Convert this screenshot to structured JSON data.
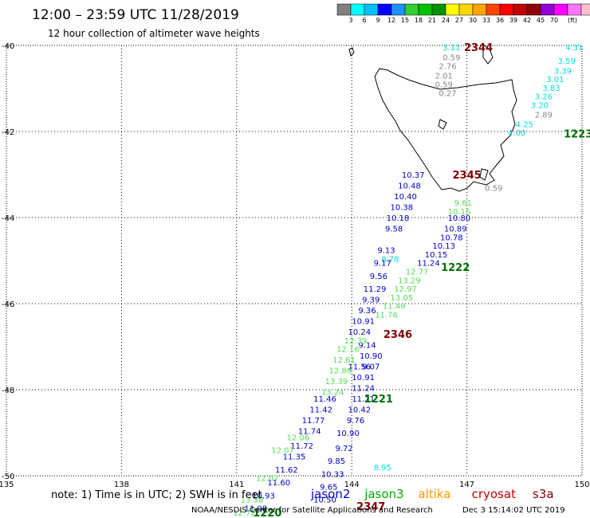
{
  "title": "12:00 – 23:59 UTC 11/28/2019",
  "subtitle": "12 hour collection of altimeter wave heights",
  "legend": {
    "colors": [
      "#808080",
      "#00ffff",
      "#00bfff",
      "#0000ff",
      "#1e90ff",
      "#32cd32",
      "#00c000",
      "#009000",
      "#ffff00",
      "#ffd700",
      "#ffa500",
      "#ff4500",
      "#ff0000",
      "#c00000",
      "#900000",
      "#9400d3",
      "#ff00ff",
      "#ff77ff",
      "#ffc0cb",
      "#000000"
    ],
    "labels": [
      "3",
      "6",
      "9",
      "12",
      "15",
      "18",
      "21",
      "24",
      "27",
      "30",
      "33",
      "36",
      "39",
      "42",
      "45",
      "70",
      "(ft)"
    ]
  },
  "chart_data": {
    "type": "map",
    "x_ticks": [
      "135",
      "138",
      "141",
      "144",
      "147",
      "150"
    ],
    "y_ticks": [
      "-40",
      "-42",
      "-44",
      "-46",
      "-48",
      "-50"
    ],
    "xlim": [
      135,
      150
    ],
    "ylim": [
      -50,
      -40
    ],
    "grid": true,
    "tracks": [
      {
        "color": "#00dddd",
        "labels": [
          {
            "lon": 146.6,
            "lat": -40.04,
            "t": "3.11"
          },
          {
            "lon": 149.8,
            "lat": -40.04,
            "t": "4.31"
          },
          {
            "lon": 149.6,
            "lat": -40.35,
            "t": "3.59"
          },
          {
            "lon": 149.5,
            "lat": -40.58,
            "t": "3.39"
          },
          {
            "lon": 149.3,
            "lat": -40.78,
            "t": "3.01"
          },
          {
            "lon": 149.2,
            "lat": -40.98,
            "t": "3.83"
          },
          {
            "lon": 149.0,
            "lat": -41.18,
            "t": "3.26"
          },
          {
            "lon": 148.9,
            "lat": -41.38,
            "t": "3.20"
          },
          {
            "lon": 148.5,
            "lat": -41.82,
            "t": "4.25"
          },
          {
            "lon": 148.3,
            "lat": -42.02,
            "t": "4.00"
          },
          {
            "lon": 144.8,
            "lat": -49.8,
            "t": "8.95"
          },
          {
            "lon": 145.0,
            "lat": -44.95,
            "t": "8.78"
          }
        ]
      },
      {
        "color": "#888888",
        "labels": [
          {
            "lon": 146.6,
            "lat": -40.27,
            "t": "0.59"
          },
          {
            "lon": 146.5,
            "lat": -40.47,
            "t": "2.76"
          },
          {
            "lon": 146.4,
            "lat": -40.69,
            "t": "2.01"
          },
          {
            "lon": 146.4,
            "lat": -40.9,
            "t": "0.59"
          },
          {
            "lon": 146.5,
            "lat": -41.1,
            "t": "0.27"
          },
          {
            "lon": 149.0,
            "lat": -41.6,
            "t": "2.89"
          },
          {
            "lon": 147.7,
            "lat": -43.31,
            "t": "0.59"
          }
        ]
      },
      {
        "color": "#0000cc",
        "labels": [
          {
            "lon": 145.6,
            "lat": -43.0,
            "t": "10.37"
          },
          {
            "lon": 145.5,
            "lat": -43.25,
            "t": "10.48"
          },
          {
            "lon": 145.4,
            "lat": -43.5,
            "t": "10.40"
          },
          {
            "lon": 145.3,
            "lat": -43.75,
            "t": "10.38"
          },
          {
            "lon": 145.2,
            "lat": -44.0,
            "t": "10.18"
          },
          {
            "lon": 146.8,
            "lat": -44.0,
            "t": "10.80"
          },
          {
            "lon": 145.1,
            "lat": -44.25,
            "t": "9.58"
          },
          {
            "lon": 146.7,
            "lat": -44.25,
            "t": "10.89"
          },
          {
            "lon": 146.6,
            "lat": -44.45,
            "t": "10.78"
          },
          {
            "lon": 146.4,
            "lat": -44.65,
            "t": "10.13"
          },
          {
            "lon": 144.9,
            "lat": -44.75,
            "t": "9.13"
          },
          {
            "lon": 146.2,
            "lat": -44.85,
            "t": "10.15"
          },
          {
            "lon": 144.8,
            "lat": -45.05,
            "t": "9.17"
          },
          {
            "lon": 146.0,
            "lat": -45.05,
            "t": "11.24"
          },
          {
            "lon": 144.7,
            "lat": -45.35,
            "t": "9.56"
          },
          {
            "lon": 144.6,
            "lat": -45.65,
            "t": "11.29"
          },
          {
            "lon": 144.5,
            "lat": -45.9,
            "t": "9.39"
          },
          {
            "lon": 144.4,
            "lat": -46.15,
            "t": "9.36"
          },
          {
            "lon": 144.3,
            "lat": -46.4,
            "t": "10.91"
          },
          {
            "lon": 144.2,
            "lat": -46.65,
            "t": "10.24"
          },
          {
            "lon": 144.4,
            "lat": -46.95,
            "t": "9.14"
          },
          {
            "lon": 144.5,
            "lat": -47.2,
            "t": "10.90"
          },
          {
            "lon": 144.2,
            "lat": -47.45,
            "t": "11.56"
          },
          {
            "lon": 144.5,
            "lat": -47.45,
            "t": "9.07"
          },
          {
            "lon": 144.3,
            "lat": -47.7,
            "t": "10.91"
          },
          {
            "lon": 144.3,
            "lat": -47.95,
            "t": "11.24"
          },
          {
            "lon": 143.3,
            "lat": -48.2,
            "t": "11.46"
          },
          {
            "lon": 144.3,
            "lat": -48.2,
            "t": "11.21"
          },
          {
            "lon": 143.2,
            "lat": -48.45,
            "t": "11.42"
          },
          {
            "lon": 144.2,
            "lat": -48.45,
            "t": "10.42"
          },
          {
            "lon": 143.0,
            "lat": -48.7,
            "t": "11.77"
          },
          {
            "lon": 144.1,
            "lat": -48.7,
            "t": "9.76"
          },
          {
            "lon": 142.9,
            "lat": -48.95,
            "t": "11.74"
          },
          {
            "lon": 143.9,
            "lat": -49.0,
            "t": "10.90"
          },
          {
            "lon": 142.7,
            "lat": -49.3,
            "t": "11.72"
          },
          {
            "lon": 143.8,
            "lat": -49.35,
            "t": "9.72"
          },
          {
            "lon": 142.5,
            "lat": -49.55,
            "t": "11.35"
          },
          {
            "lon": 143.6,
            "lat": -49.65,
            "t": "9.85"
          },
          {
            "lon": 142.3,
            "lat": -49.85,
            "t": "11.62"
          },
          {
            "lon": 143.5,
            "lat": -49.95,
            "t": "10.33"
          },
          {
            "lon": 142.1,
            "lat": -50.15,
            "t": "11.60"
          },
          {
            "lon": 143.4,
            "lat": -50.25,
            "t": "9.65"
          },
          {
            "lon": 141.7,
            "lat": -50.45,
            "t": "10.93"
          },
          {
            "lon": 143.3,
            "lat": -50.55,
            "t": "10.50"
          },
          {
            "lon": 141.5,
            "lat": -50.75,
            "t": "11.98"
          }
        ]
      },
      {
        "color": "#55dd55",
        "labels": [
          {
            "lon": 146.9,
            "lat": -43.65,
            "t": "9.61"
          },
          {
            "lon": 146.8,
            "lat": -43.85,
            "t": "10.16"
          },
          {
            "lon": 145.7,
            "lat": -45.25,
            "t": "12.77"
          },
          {
            "lon": 145.5,
            "lat": -45.45,
            "t": "13.29"
          },
          {
            "lon": 145.4,
            "lat": -45.65,
            "t": "12.97"
          },
          {
            "lon": 145.3,
            "lat": -45.85,
            "t": "13.05"
          },
          {
            "lon": 145.1,
            "lat": -46.05,
            "t": "11.49"
          },
          {
            "lon": 144.9,
            "lat": -46.25,
            "t": "11.76"
          },
          {
            "lon": 144.1,
            "lat": -46.85,
            "t": "12.39"
          },
          {
            "lon": 143.9,
            "lat": -47.05,
            "t": "12.16"
          },
          {
            "lon": 143.8,
            "lat": -47.3,
            "t": "12.61"
          },
          {
            "lon": 143.7,
            "lat": -47.55,
            "t": "12.86"
          },
          {
            "lon": 143.6,
            "lat": -47.8,
            "t": "13.39"
          },
          {
            "lon": 143.5,
            "lat": -48.05,
            "t": "13.24"
          },
          {
            "lon": 142.6,
            "lat": -49.1,
            "t": "12.06"
          },
          {
            "lon": 142.2,
            "lat": -49.4,
            "t": "12.07"
          },
          {
            "lon": 141.8,
            "lat": -50.05,
            "t": "12.07"
          },
          {
            "lon": 141.4,
            "lat": -50.55,
            "t": "13.38"
          },
          {
            "lon": 141.2,
            "lat": -50.85,
            "t": "12.72"
          }
        ]
      }
    ],
    "pass_times": [
      {
        "lon": 147.3,
        "lat": -40.04,
        "t": "2344",
        "color": "#800000"
      },
      {
        "lon": 149.9,
        "lat": -42.05,
        "t": "1223",
        "color": "#007000"
      },
      {
        "lon": 147.0,
        "lat": -43.0,
        "t": "2345",
        "color": "#800000"
      },
      {
        "lon": 146.7,
        "lat": -45.15,
        "t": "1222",
        "color": "#007000"
      },
      {
        "lon": 145.2,
        "lat": -46.7,
        "t": "2346",
        "color": "#800000"
      },
      {
        "lon": 144.7,
        "lat": -48.2,
        "t": "1221",
        "color": "#007000"
      },
      {
        "lon": 141.8,
        "lat": -50.85,
        "t": "1220",
        "color": "#007000"
      },
      {
        "lon": 144.5,
        "lat": -50.7,
        "t": "2347",
        "color": "#800000"
      }
    ]
  },
  "note": "note: 1) Time is in UTC; 2) SWH is in feet",
  "satellites": [
    {
      "name": "jason2",
      "color": "#0000cc"
    },
    {
      "name": "jason3",
      "color": "#00aa00"
    },
    {
      "name": "altika",
      "color": "#ff9900"
    },
    {
      "name": "cryosat",
      "color": "#cc0000"
    },
    {
      "name": "s3a",
      "color": "#800000"
    }
  ],
  "footer": "NOAA/NESDIS Center for Satellite Applications and Research",
  "footer_time": "Dec  3 15:14:02 UTC 2019"
}
